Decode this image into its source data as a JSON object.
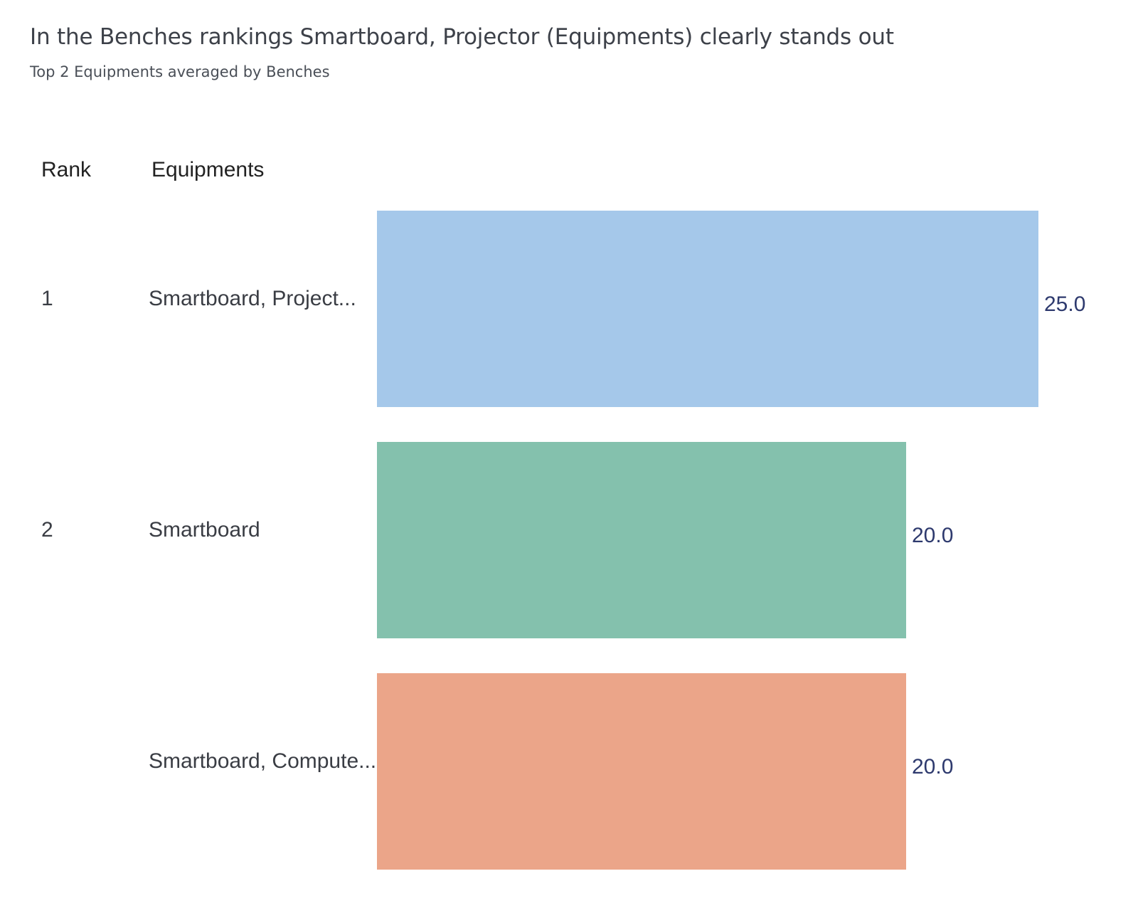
{
  "header": {
    "title": "In the Benches rankings Smartboard, Projector (Equipments) clearly stands out",
    "subtitle": "Top 2 Equipments averaged by Benches"
  },
  "columns": {
    "rank": "Rank",
    "equipments": "Equipments"
  },
  "chart_data": {
    "type": "bar",
    "orientation": "horizontal",
    "title": "In the Benches rankings Smartboard, Projector (Equipments) clearly stands out",
    "subtitle": "Top 2 Equipments averaged by Benches",
    "xlim": [
      0,
      25
    ],
    "grid": false,
    "legend": "none",
    "rows": [
      {
        "rank": "1",
        "category": "Smartboard, Project...",
        "value": 25.0,
        "value_label": "25.0",
        "color": "#a5c8ea"
      },
      {
        "rank": "2",
        "category": "Smartboard",
        "value": 20.0,
        "value_label": "20.0",
        "color": "#84c1ad"
      },
      {
        "rank": "",
        "category": "Smartboard, Compute...",
        "value": 20.0,
        "value_label": "20.0",
        "color": "#eba589"
      }
    ],
    "label_color": "#2e3a6e",
    "text_color": "#3a3d44"
  }
}
